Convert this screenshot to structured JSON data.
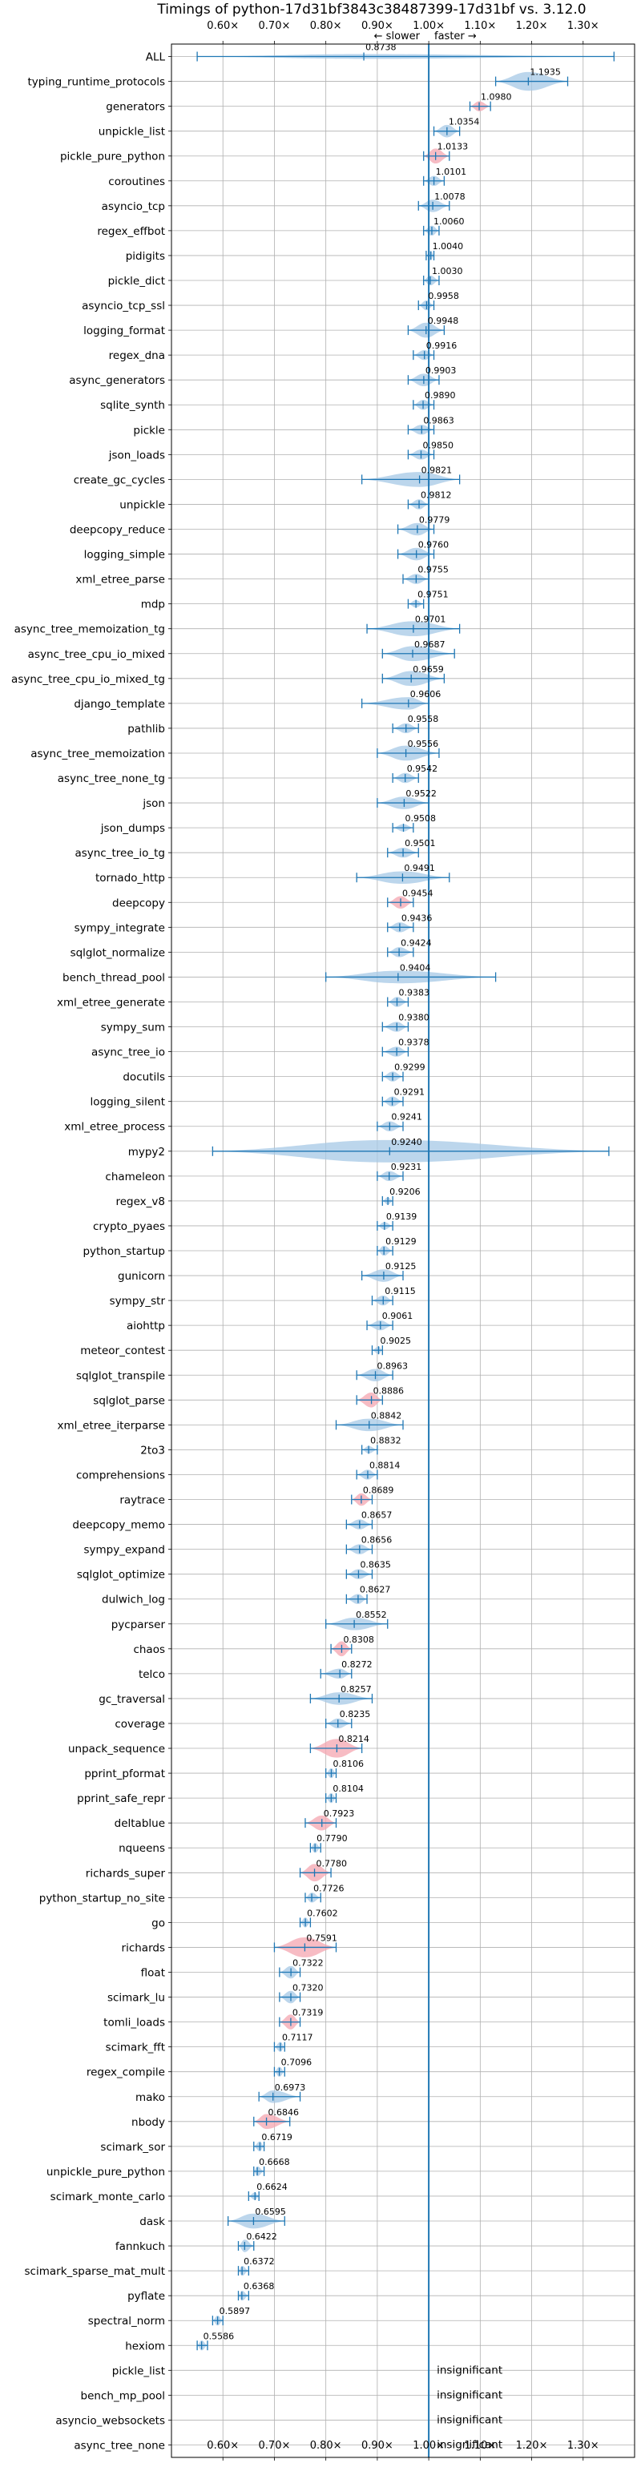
{
  "chart_data": {
    "type": "violin",
    "title": "Timings of python-17d31bf3843c38487399-17d31bf vs. 3.12.0",
    "direction_labels": {
      "slower": "← slower",
      "faster": "faster →"
    },
    "xlim": [
      0.5,
      1.4
    ],
    "xticks": [
      0.6,
      0.7,
      0.8,
      0.9,
      1.0,
      1.1,
      1.2,
      1.3
    ],
    "xtick_labels": [
      "0.60×",
      "0.70×",
      "0.80×",
      "0.90×",
      "1.00×",
      "1.10×",
      "1.20×",
      "1.30×"
    ],
    "reference_line": 1.0,
    "grid": true,
    "colors": {
      "normal": "#a6c8e6",
      "highlight": "#f4a6b0",
      "line": "#1f77b4"
    },
    "insignificant_label": "insignificant",
    "benchmarks": [
      {
        "name": "ALL",
        "value": 0.8738,
        "min": 0.55,
        "max": 1.36,
        "width": 0.18,
        "highlight": false
      },
      {
        "name": "typing_runtime_protocols",
        "value": 1.1935,
        "min": 1.13,
        "max": 1.27,
        "width": 0.75,
        "highlight": false
      },
      {
        "name": "generators",
        "value": 1.098,
        "min": 1.08,
        "max": 1.12,
        "width": 0.4,
        "highlight": true
      },
      {
        "name": "unpickle_list",
        "value": 1.0354,
        "min": 1.01,
        "max": 1.06,
        "width": 0.5,
        "highlight": false
      },
      {
        "name": "pickle_pure_python",
        "value": 1.0133,
        "min": 0.99,
        "max": 1.04,
        "width": 0.6,
        "highlight": true
      },
      {
        "name": "coroutines",
        "value": 1.0101,
        "min": 0.99,
        "max": 1.03,
        "width": 0.4,
        "highlight": false
      },
      {
        "name": "asyncio_tcp",
        "value": 1.0078,
        "min": 0.98,
        "max": 1.04,
        "width": 0.5,
        "highlight": false
      },
      {
        "name": "regex_effbot",
        "value": 1.006,
        "min": 0.99,
        "max": 1.02,
        "width": 0.4,
        "highlight": false
      },
      {
        "name": "pidigits",
        "value": 1.004,
        "min": 0.995,
        "max": 1.01,
        "width": 0.4,
        "highlight": false
      },
      {
        "name": "pickle_dict",
        "value": 1.003,
        "min": 0.99,
        "max": 1.02,
        "width": 0.4,
        "highlight": false
      },
      {
        "name": "asyncio_tcp_ssl",
        "value": 0.9958,
        "min": 0.98,
        "max": 1.01,
        "width": 0.4,
        "highlight": false
      },
      {
        "name": "logging_format",
        "value": 0.9948,
        "min": 0.96,
        "max": 1.03,
        "width": 0.6,
        "highlight": false
      },
      {
        "name": "regex_dna",
        "value": 0.9916,
        "min": 0.97,
        "max": 1.01,
        "width": 0.4,
        "highlight": false
      },
      {
        "name": "async_generators",
        "value": 0.9903,
        "min": 0.96,
        "max": 1.02,
        "width": 0.5,
        "highlight": false
      },
      {
        "name": "sqlite_synth",
        "value": 0.989,
        "min": 0.97,
        "max": 1.01,
        "width": 0.4,
        "highlight": false
      },
      {
        "name": "pickle",
        "value": 0.9863,
        "min": 0.96,
        "max": 1.01,
        "width": 0.4,
        "highlight": false
      },
      {
        "name": "json_loads",
        "value": 0.985,
        "min": 0.96,
        "max": 1.01,
        "width": 0.4,
        "highlight": false
      },
      {
        "name": "create_gc_cycles",
        "value": 0.9821,
        "min": 0.87,
        "max": 1.06,
        "width": 0.6,
        "highlight": false
      },
      {
        "name": "unpickle",
        "value": 0.9812,
        "min": 0.96,
        "max": 1.0,
        "width": 0.4,
        "highlight": false
      },
      {
        "name": "deepcopy_reduce",
        "value": 0.9779,
        "min": 0.94,
        "max": 1.01,
        "width": 0.5,
        "highlight": false
      },
      {
        "name": "logging_simple",
        "value": 0.976,
        "min": 0.94,
        "max": 1.01,
        "width": 0.5,
        "highlight": false
      },
      {
        "name": "xml_etree_parse",
        "value": 0.9755,
        "min": 0.95,
        "max": 1.0,
        "width": 0.4,
        "highlight": false
      },
      {
        "name": "mdp",
        "value": 0.9751,
        "min": 0.96,
        "max": 0.99,
        "width": 0.3,
        "highlight": false
      },
      {
        "name": "async_tree_memoization_tg",
        "value": 0.9701,
        "min": 0.88,
        "max": 1.06,
        "width": 0.6,
        "highlight": false
      },
      {
        "name": "async_tree_cpu_io_mixed",
        "value": 0.9687,
        "min": 0.91,
        "max": 1.05,
        "width": 0.6,
        "highlight": false
      },
      {
        "name": "async_tree_cpu_io_mixed_tg",
        "value": 0.9659,
        "min": 0.91,
        "max": 1.03,
        "width": 0.6,
        "highlight": false
      },
      {
        "name": "django_template",
        "value": 0.9606,
        "min": 0.87,
        "max": 1.0,
        "width": 0.5,
        "highlight": false
      },
      {
        "name": "pathlib",
        "value": 0.9558,
        "min": 0.93,
        "max": 0.98,
        "width": 0.4,
        "highlight": false
      },
      {
        "name": "async_tree_memoization",
        "value": 0.9556,
        "min": 0.9,
        "max": 1.02,
        "width": 0.6,
        "highlight": false
      },
      {
        "name": "async_tree_none_tg",
        "value": 0.9542,
        "min": 0.93,
        "max": 0.98,
        "width": 0.4,
        "highlight": false
      },
      {
        "name": "json",
        "value": 0.9522,
        "min": 0.9,
        "max": 1.0,
        "width": 0.5,
        "highlight": false
      },
      {
        "name": "json_dumps",
        "value": 0.9508,
        "min": 0.93,
        "max": 0.97,
        "width": 0.3,
        "highlight": false
      },
      {
        "name": "async_tree_io_tg",
        "value": 0.9501,
        "min": 0.92,
        "max": 0.98,
        "width": 0.4,
        "highlight": false
      },
      {
        "name": "tornado_http",
        "value": 0.9491,
        "min": 0.86,
        "max": 1.04,
        "width": 0.5,
        "highlight": false
      },
      {
        "name": "deepcopy",
        "value": 0.9454,
        "min": 0.92,
        "max": 0.97,
        "width": 0.5,
        "highlight": true
      },
      {
        "name": "sympy_integrate",
        "value": 0.9436,
        "min": 0.92,
        "max": 0.97,
        "width": 0.4,
        "highlight": false
      },
      {
        "name": "sqlglot_normalize",
        "value": 0.9424,
        "min": 0.92,
        "max": 0.97,
        "width": 0.4,
        "highlight": false
      },
      {
        "name": "bench_thread_pool",
        "value": 0.9404,
        "min": 0.8,
        "max": 1.13,
        "width": 0.5,
        "highlight": false
      },
      {
        "name": "xml_etree_generate",
        "value": 0.9383,
        "min": 0.92,
        "max": 0.96,
        "width": 0.4,
        "highlight": false
      },
      {
        "name": "sympy_sum",
        "value": 0.938,
        "min": 0.91,
        "max": 0.96,
        "width": 0.4,
        "highlight": false
      },
      {
        "name": "async_tree_io",
        "value": 0.9378,
        "min": 0.91,
        "max": 0.96,
        "width": 0.4,
        "highlight": false
      },
      {
        "name": "docutils",
        "value": 0.9299,
        "min": 0.91,
        "max": 0.95,
        "width": 0.4,
        "highlight": false
      },
      {
        "name": "logging_silent",
        "value": 0.9291,
        "min": 0.91,
        "max": 0.95,
        "width": 0.4,
        "highlight": false
      },
      {
        "name": "xml_etree_process",
        "value": 0.9241,
        "min": 0.9,
        "max": 0.95,
        "width": 0.4,
        "highlight": false
      },
      {
        "name": "mypy2",
        "value": 0.924,
        "min": 0.58,
        "max": 1.35,
        "width": 0.9,
        "highlight": false
      },
      {
        "name": "chameleon",
        "value": 0.9231,
        "min": 0.9,
        "max": 0.95,
        "width": 0.4,
        "highlight": false
      },
      {
        "name": "regex_v8",
        "value": 0.9206,
        "min": 0.91,
        "max": 0.93,
        "width": 0.3,
        "highlight": false
      },
      {
        "name": "crypto_pyaes",
        "value": 0.9139,
        "min": 0.9,
        "max": 0.93,
        "width": 0.3,
        "highlight": false
      },
      {
        "name": "python_startup",
        "value": 0.9129,
        "min": 0.9,
        "max": 0.93,
        "width": 0.4,
        "highlight": false
      },
      {
        "name": "gunicorn",
        "value": 0.9125,
        "min": 0.87,
        "max": 0.95,
        "width": 0.5,
        "highlight": false
      },
      {
        "name": "sympy_str",
        "value": 0.9115,
        "min": 0.89,
        "max": 0.93,
        "width": 0.4,
        "highlight": false
      },
      {
        "name": "aiohttp",
        "value": 0.9061,
        "min": 0.88,
        "max": 0.93,
        "width": 0.4,
        "highlight": false
      },
      {
        "name": "meteor_contest",
        "value": 0.9025,
        "min": 0.89,
        "max": 0.91,
        "width": 0.3,
        "highlight": false
      },
      {
        "name": "sqlglot_transpile",
        "value": 0.8963,
        "min": 0.86,
        "max": 0.93,
        "width": 0.5,
        "highlight": false
      },
      {
        "name": "sqlglot_parse",
        "value": 0.8886,
        "min": 0.86,
        "max": 0.91,
        "width": 0.6,
        "highlight": true
      },
      {
        "name": "xml_etree_iterparse",
        "value": 0.8842,
        "min": 0.82,
        "max": 0.95,
        "width": 0.5,
        "highlight": false
      },
      {
        "name": "2to3",
        "value": 0.8832,
        "min": 0.87,
        "max": 0.9,
        "width": 0.3,
        "highlight": false
      },
      {
        "name": "comprehensions",
        "value": 0.8814,
        "min": 0.86,
        "max": 0.9,
        "width": 0.4,
        "highlight": false
      },
      {
        "name": "raytrace",
        "value": 0.8689,
        "min": 0.85,
        "max": 0.89,
        "width": 0.5,
        "highlight": true
      },
      {
        "name": "deepcopy_memo",
        "value": 0.8657,
        "min": 0.84,
        "max": 0.89,
        "width": 0.4,
        "highlight": false
      },
      {
        "name": "sympy_expand",
        "value": 0.8656,
        "min": 0.84,
        "max": 0.89,
        "width": 0.4,
        "highlight": false
      },
      {
        "name": "sqlglot_optimize",
        "value": 0.8635,
        "min": 0.84,
        "max": 0.89,
        "width": 0.4,
        "highlight": false
      },
      {
        "name": "dulwich_log",
        "value": 0.8627,
        "min": 0.84,
        "max": 0.88,
        "width": 0.4,
        "highlight": false
      },
      {
        "name": "pycparser",
        "value": 0.8552,
        "min": 0.8,
        "max": 0.92,
        "width": 0.5,
        "highlight": false
      },
      {
        "name": "chaos",
        "value": 0.8308,
        "min": 0.81,
        "max": 0.85,
        "width": 0.6,
        "highlight": true
      },
      {
        "name": "telco",
        "value": 0.8272,
        "min": 0.79,
        "max": 0.85,
        "width": 0.4,
        "highlight": false
      },
      {
        "name": "gc_traversal",
        "value": 0.8257,
        "min": 0.77,
        "max": 0.89,
        "width": 0.5,
        "highlight": false
      },
      {
        "name": "coverage",
        "value": 0.8235,
        "min": 0.8,
        "max": 0.85,
        "width": 0.4,
        "highlight": false
      },
      {
        "name": "unpack_sequence",
        "value": 0.8214,
        "min": 0.77,
        "max": 0.87,
        "width": 0.75,
        "highlight": true
      },
      {
        "name": "pprint_pformat",
        "value": 0.8106,
        "min": 0.8,
        "max": 0.82,
        "width": 0.4,
        "highlight": false
      },
      {
        "name": "pprint_safe_repr",
        "value": 0.8104,
        "min": 0.8,
        "max": 0.82,
        "width": 0.4,
        "highlight": false
      },
      {
        "name": "deltablue",
        "value": 0.7923,
        "min": 0.76,
        "max": 0.82,
        "width": 0.6,
        "highlight": true
      },
      {
        "name": "nqueens",
        "value": 0.779,
        "min": 0.77,
        "max": 0.79,
        "width": 0.4,
        "highlight": false
      },
      {
        "name": "richards_super",
        "value": 0.778,
        "min": 0.75,
        "max": 0.81,
        "width": 0.7,
        "highlight": true
      },
      {
        "name": "python_startup_no_site",
        "value": 0.7726,
        "min": 0.76,
        "max": 0.79,
        "width": 0.4,
        "highlight": false
      },
      {
        "name": "go",
        "value": 0.7602,
        "min": 0.75,
        "max": 0.77,
        "width": 0.4,
        "highlight": false
      },
      {
        "name": "richards",
        "value": 0.7591,
        "min": 0.7,
        "max": 0.82,
        "width": 0.8,
        "highlight": true
      },
      {
        "name": "float",
        "value": 0.7322,
        "min": 0.71,
        "max": 0.75,
        "width": 0.5,
        "highlight": false
      },
      {
        "name": "scimark_lu",
        "value": 0.732,
        "min": 0.71,
        "max": 0.75,
        "width": 0.5,
        "highlight": false
      },
      {
        "name": "tomli_loads",
        "value": 0.7319,
        "min": 0.71,
        "max": 0.75,
        "width": 0.6,
        "highlight": true
      },
      {
        "name": "scimark_fft",
        "value": 0.7117,
        "min": 0.7,
        "max": 0.72,
        "width": 0.4,
        "highlight": false
      },
      {
        "name": "regex_compile",
        "value": 0.7096,
        "min": 0.7,
        "max": 0.72,
        "width": 0.4,
        "highlight": false
      },
      {
        "name": "mako",
        "value": 0.6973,
        "min": 0.67,
        "max": 0.75,
        "width": 0.5,
        "highlight": false
      },
      {
        "name": "nbody",
        "value": 0.6846,
        "min": 0.66,
        "max": 0.73,
        "width": 0.6,
        "highlight": true
      },
      {
        "name": "scimark_sor",
        "value": 0.6719,
        "min": 0.66,
        "max": 0.68,
        "width": 0.4,
        "highlight": false
      },
      {
        "name": "unpickle_pure_python",
        "value": 0.6668,
        "min": 0.66,
        "max": 0.68,
        "width": 0.4,
        "highlight": false
      },
      {
        "name": "scimark_monte_carlo",
        "value": 0.6624,
        "min": 0.65,
        "max": 0.67,
        "width": 0.3,
        "highlight": false
      },
      {
        "name": "dask",
        "value": 0.6595,
        "min": 0.61,
        "max": 0.72,
        "width": 0.6,
        "highlight": false
      },
      {
        "name": "fannkuch",
        "value": 0.6422,
        "min": 0.63,
        "max": 0.66,
        "width": 0.5,
        "highlight": false
      },
      {
        "name": "scimark_sparse_mat_mult",
        "value": 0.6372,
        "min": 0.63,
        "max": 0.65,
        "width": 0.4,
        "highlight": false
      },
      {
        "name": "pyflate",
        "value": 0.6368,
        "min": 0.63,
        "max": 0.65,
        "width": 0.4,
        "highlight": false
      },
      {
        "name": "spectral_norm",
        "value": 0.5897,
        "min": 0.58,
        "max": 0.6,
        "width": 0.4,
        "highlight": false
      },
      {
        "name": "hexiom",
        "value": 0.5586,
        "min": 0.55,
        "max": 0.57,
        "width": 0.4,
        "highlight": false
      },
      {
        "name": "pickle_list",
        "value": null,
        "insignificant": true
      },
      {
        "name": "bench_mp_pool",
        "value": null,
        "insignificant": true
      },
      {
        "name": "asyncio_websockets",
        "value": null,
        "insignificant": true
      },
      {
        "name": "async_tree_none",
        "value": null,
        "insignificant": true
      }
    ]
  }
}
